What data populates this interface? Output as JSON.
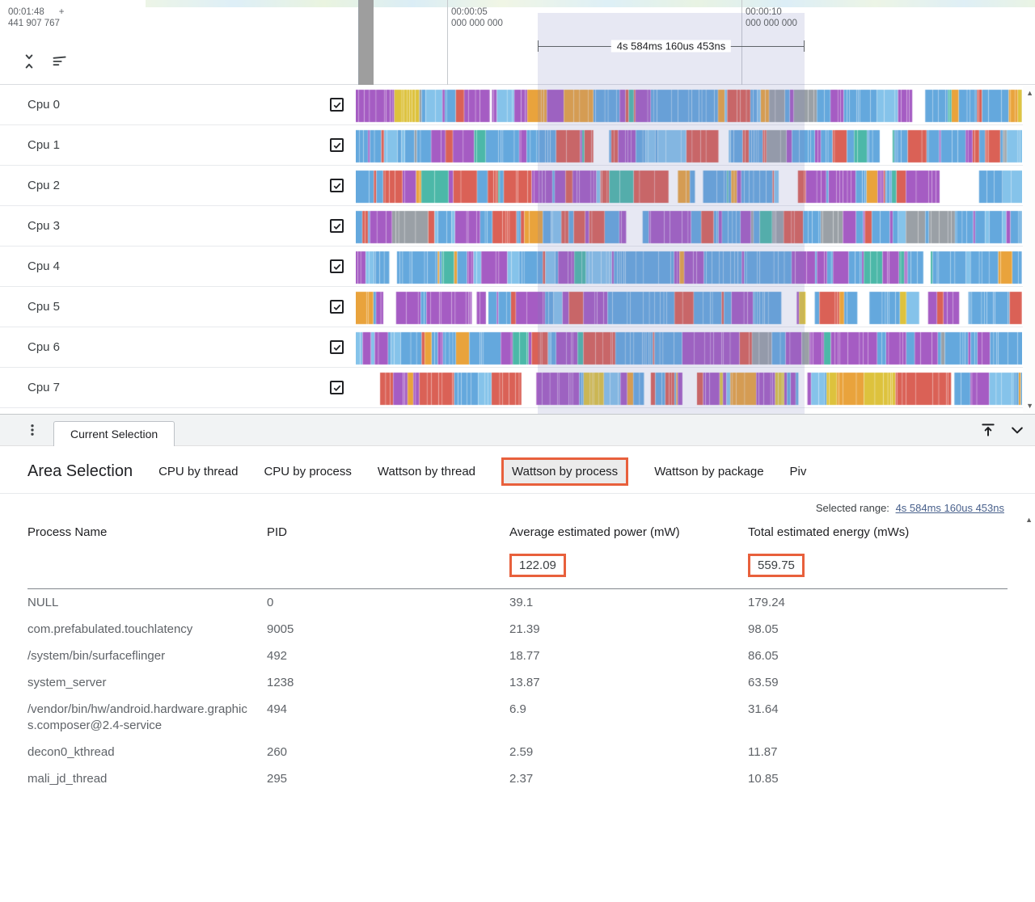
{
  "colors": {
    "accent_orange": "#e8603c"
  },
  "timeline": {
    "clock": "00:01:48",
    "clock_plus": "+",
    "clock_sub": "441 907 767",
    "markers": [
      {
        "time": "00:00:05",
        "sub": "000 000 000"
      },
      {
        "time": "00:00:10",
        "sub": "000 000 000"
      }
    ],
    "span_label": "4s 584ms 160us 453ns"
  },
  "track_palette": {
    "blue": "#64a8dd",
    "lightblue": "#85c3ea",
    "purple": "#a55cc3",
    "red": "#da6156",
    "orange": "#e9a33c",
    "yellow": "#ddc23d",
    "teal": "#4cb8a8",
    "gray": "#9aa0a6",
    "green": "#7cb87c",
    "white": "#ffffff"
  },
  "tracks": [
    {
      "label": "Cpu 0",
      "checked": true,
      "seed": 101,
      "weights": {
        "blue": 0.4,
        "lightblue": 0.08,
        "purple": 0.18,
        "orange": 0.1,
        "red": 0.08,
        "teal": 0.05,
        "yellow": 0.04,
        "gray": 0.03,
        "white": 0.04
      }
    },
    {
      "label": "Cpu 1",
      "checked": true,
      "seed": 202,
      "weights": {
        "blue": 0.36,
        "red": 0.24,
        "purple": 0.18,
        "lightblue": 0.06,
        "orange": 0.05,
        "teal": 0.04,
        "gray": 0.03,
        "white": 0.04
      }
    },
    {
      "label": "Cpu 2",
      "checked": true,
      "seed": 303,
      "weights": {
        "blue": 0.38,
        "red": 0.3,
        "purple": 0.14,
        "lightblue": 0.05,
        "orange": 0.04,
        "teal": 0.04,
        "white": 0.05
      }
    },
    {
      "label": "Cpu 3",
      "checked": true,
      "seed": 404,
      "weights": {
        "blue": 0.44,
        "purple": 0.22,
        "red": 0.08,
        "gray": 0.09,
        "lightblue": 0.06,
        "teal": 0.04,
        "orange": 0.03,
        "white": 0.04
      }
    },
    {
      "label": "Cpu 4",
      "checked": true,
      "seed": 505,
      "weights": {
        "blue": 0.5,
        "purple": 0.25,
        "lightblue": 0.08,
        "red": 0.05,
        "teal": 0.04,
        "orange": 0.04,
        "white": 0.04
      }
    },
    {
      "label": "Cpu 5",
      "checked": true,
      "seed": 606,
      "weights": {
        "blue": 0.31,
        "purple": 0.28,
        "red": 0.14,
        "white": 0.12,
        "orange": 0.05,
        "yellow": 0.04,
        "lightblue": 0.06
      }
    },
    {
      "label": "Cpu 6",
      "checked": true,
      "seed": 707,
      "weights": {
        "purple": 0.42,
        "blue": 0.26,
        "gray": 0.08,
        "red": 0.06,
        "teal": 0.05,
        "lightblue": 0.05,
        "orange": 0.04,
        "white": 0.04
      }
    },
    {
      "label": "Cpu 7",
      "checked": true,
      "seed": 808,
      "weights": {
        "purple": 0.31,
        "blue": 0.26,
        "red": 0.15,
        "white": 0.12,
        "yellow": 0.05,
        "orange": 0.05,
        "lightblue": 0.06
      }
    }
  ],
  "panel_tab": {
    "label": "Current Selection"
  },
  "area_selection": {
    "title": "Area Selection",
    "tabs": [
      {
        "label": "CPU by thread",
        "active": false
      },
      {
        "label": "CPU by process",
        "active": false
      },
      {
        "label": "Wattson by thread",
        "active": false
      },
      {
        "label": "Wattson by process",
        "active": true
      },
      {
        "label": "Wattson by package",
        "active": false
      },
      {
        "label": "Piv",
        "active": false
      }
    ],
    "selected_range_label": "Selected range:",
    "selected_range_value": "4s 584ms 160us 453ns"
  },
  "table": {
    "columns": [
      "Process Name",
      "PID",
      "Average estimated power (mW)",
      "Total estimated energy (mWs)"
    ],
    "totals": {
      "power": "122.09",
      "energy": "559.75"
    },
    "rows": [
      {
        "name": "NULL",
        "pid": "0",
        "power": "39.1",
        "energy": "179.24"
      },
      {
        "name": "com.prefabulated.touchlatency",
        "pid": "9005",
        "power": "21.39",
        "energy": "98.05"
      },
      {
        "name": "/system/bin/surfaceflinger",
        "pid": "492",
        "power": "18.77",
        "energy": "86.05"
      },
      {
        "name": "system_server",
        "pid": "1238",
        "power": "13.87",
        "energy": "63.59"
      },
      {
        "name": "/vendor/bin/hw/android.hardware.graphics.composer@2.4-service",
        "pid": "494",
        "power": "6.9",
        "energy": "31.64"
      },
      {
        "name": "decon0_kthread",
        "pid": "260",
        "power": "2.59",
        "energy": "11.87"
      },
      {
        "name": "mali_jd_thread",
        "pid": "295",
        "power": "2.37",
        "energy": "10.85"
      }
    ]
  }
}
